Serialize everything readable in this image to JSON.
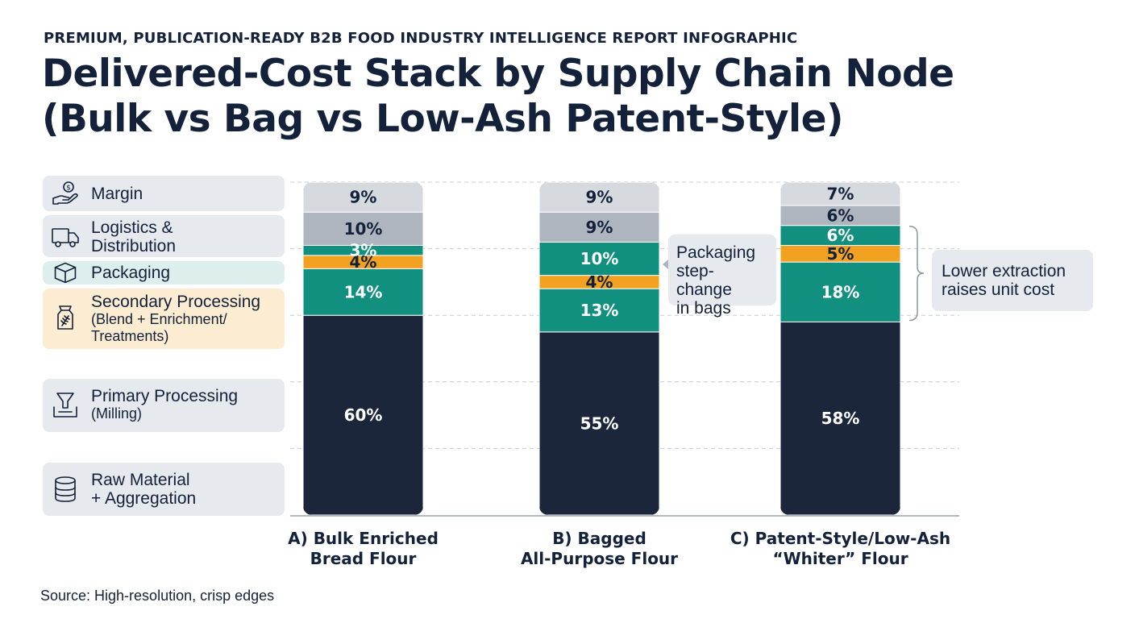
{
  "header": {
    "eyebrow": "PREMIUM, PUBLICATION-READY B2B FOOD INDUSTRY INTELLIGENCE REPORT INFOGRAPHIC",
    "title_line1": "Delivered-Cost Stack by Supply Chain Node",
    "title_line2": "(Bulk vs Bag vs Low-Ash Patent-Style)"
  },
  "legend": {
    "margin": {
      "label": "Margin",
      "icon": "hand-coin-icon"
    },
    "logistics": {
      "label_line1": "Logistics &",
      "label_line2": "Distribution",
      "icon": "truck-icon"
    },
    "packaging": {
      "label": "Packaging",
      "icon": "box-icon"
    },
    "secondary": {
      "label": "Secondary Processing",
      "sub_line1": "(Blend + Enrichment/",
      "sub_line2": "Treatments)",
      "icon": "flour-bag-icon"
    },
    "primary": {
      "label": "Primary Processing",
      "sub": "(Milling)",
      "icon": "funnel-icon"
    },
    "raw": {
      "label_line1": "Raw Material",
      "label_line2": "+ Aggregation",
      "icon": "database-icon"
    }
  },
  "callouts": {
    "packaging_line1": "Packaging",
    "packaging_line2": "step-change",
    "packaging_line3": "in bags",
    "extraction_line1": "Lower extraction",
    "extraction_line2": "raises unit cost"
  },
  "source": "Source: High-resolution, crisp edges",
  "colors": {
    "raw": "#1b263a",
    "primary": "#11907f",
    "secondary": "#f2a121",
    "packaging": "#11907f",
    "logistics": "#aeb5be",
    "margin": "#d6dadf"
  },
  "chart_data": {
    "type": "bar",
    "stacked": true,
    "units": "percent of delivered cost",
    "categories": [
      "A) Bulk Enriched Bread Flour",
      "B) Bagged All-Purpose Flour",
      "C) Patent-Style/Low-Ash “Whiter” Flour"
    ],
    "category_lines": [
      [
        "A) Bulk Enriched",
        "Bread Flour"
      ],
      [
        "B) Bagged",
        "All-Purpose Flour"
      ],
      [
        "C) Patent-Style/Low-Ash",
        "“Whiter” Flour"
      ]
    ],
    "series": [
      {
        "name": "Raw Material + Aggregation",
        "key": "raw",
        "values": [
          60,
          55,
          58
        ]
      },
      {
        "name": "Primary Processing (Milling)",
        "key": "primary",
        "values": [
          14,
          13,
          18
        ]
      },
      {
        "name": "Secondary Processing (Blend + Enrichment/Treatments)",
        "key": "secondary",
        "values": [
          4,
          4,
          5
        ]
      },
      {
        "name": "Packaging",
        "key": "packaging",
        "values": [
          3,
          10,
          6
        ]
      },
      {
        "name": "Logistics & Distribution",
        "key": "logistics",
        "values": [
          10,
          9,
          6
        ]
      },
      {
        "name": "Margin",
        "key": "margin",
        "values": [
          9,
          9,
          7
        ]
      }
    ],
    "ylim": [
      0,
      100
    ],
    "grid": true
  }
}
